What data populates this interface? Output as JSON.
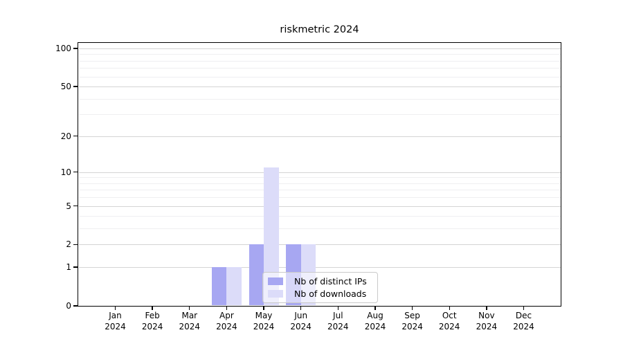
{
  "chart_data": {
    "type": "bar",
    "title": "riskmetric 2024",
    "categories": [
      "Jan",
      "Feb",
      "Mar",
      "Apr",
      "May",
      "Jun",
      "Jul",
      "Aug",
      "Sep",
      "Oct",
      "Nov",
      "Dec"
    ],
    "category_year": "2024",
    "series": [
      {
        "name": "Nb of distinct IPs",
        "color": "#a7a7f2",
        "values": [
          0,
          0,
          0,
          1,
          2,
          2,
          0,
          0,
          0,
          0,
          0,
          0
        ]
      },
      {
        "name": "Nb of downloads",
        "color": "#dcdcf9",
        "values": [
          0,
          0,
          0,
          1,
          11,
          2,
          0,
          0,
          0,
          0,
          0,
          0
        ]
      }
    ],
    "xlabel": "",
    "ylabel": "",
    "y_scale": "log1p",
    "y_ticks": [
      0,
      1,
      2,
      5,
      10,
      20,
      50,
      100
    ],
    "y_minor_gridlines": [
      3,
      4,
      6,
      7,
      8,
      9,
      30,
      40,
      60,
      70,
      80,
      90
    ],
    "ylim": [
      0,
      110
    ],
    "grid": true,
    "legend_position": "inside-bottom-right"
  },
  "colors": {
    "axis": "#000000",
    "grid_major": "#d4d4d4",
    "grid_minor": "#efeff1",
    "legend_border": "#c9c9c9"
  }
}
